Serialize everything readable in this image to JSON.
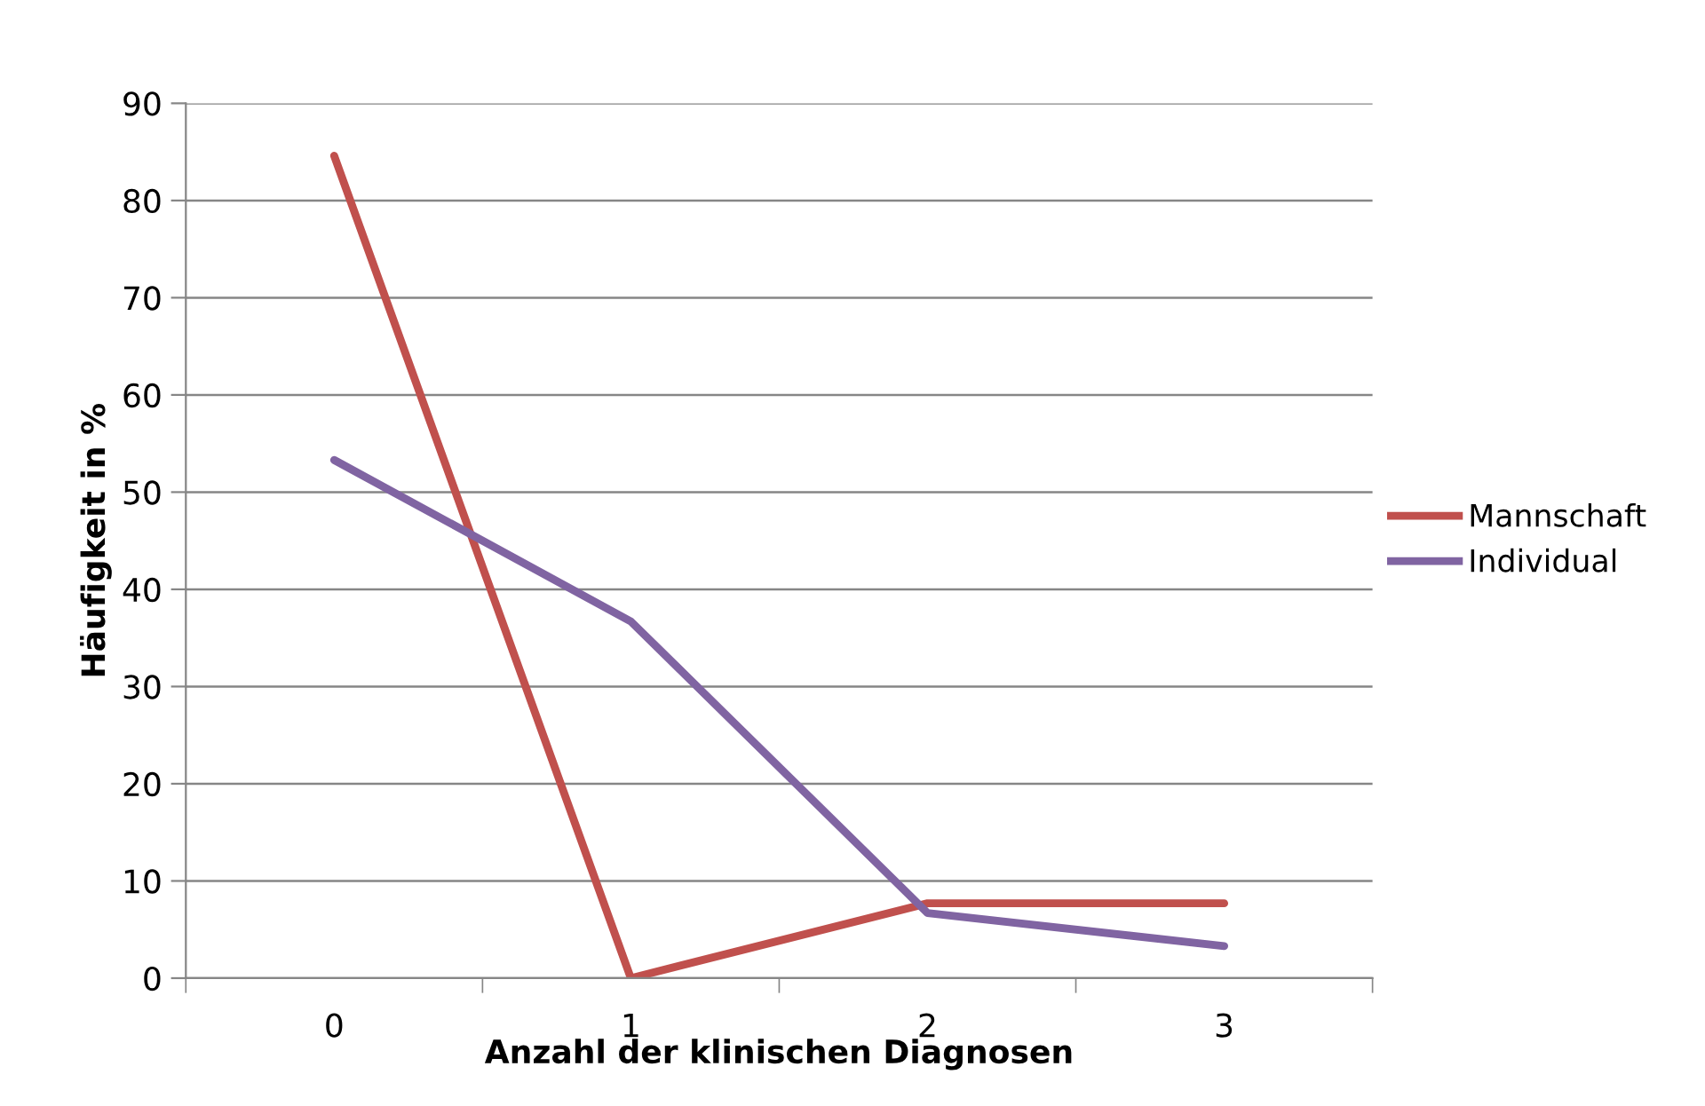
{
  "chart_data": {
    "type": "line",
    "xlabel": "Anzahl der klinischen Diagnosen",
    "ylabel": "Häufigkeit in %",
    "categories": [
      "0",
      "1",
      "2",
      "3"
    ],
    "series": [
      {
        "name": "Mannschaft",
        "color": "#c0504d",
        "values": [
          84.6,
          0,
          7.7,
          7.7
        ]
      },
      {
        "name": "Individual",
        "color": "#8064a2",
        "values": [
          53.3,
          36.7,
          6.7,
          3.3
        ]
      }
    ],
    "ylim": [
      0,
      90
    ],
    "yticks": [
      0,
      10,
      20,
      30,
      40,
      50,
      60,
      70,
      80,
      90
    ],
    "grid": "y",
    "legend": "right",
    "marker": "none",
    "line_style": "solid"
  }
}
